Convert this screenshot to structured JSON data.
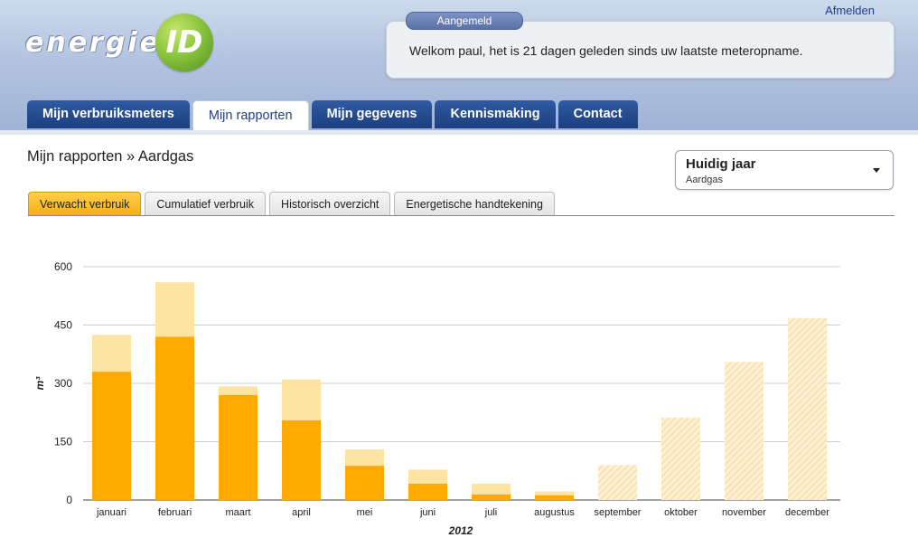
{
  "header": {
    "logo_text": "energie",
    "logo_ball_text": "ID",
    "logout_label": "Afmelden",
    "welcome_badge": "Aangemeld",
    "welcome_text": "Welkom paul, het is 21 dagen geleden sinds uw laatste meteropname."
  },
  "nav": {
    "tabs": [
      {
        "label": "Mijn verbruiksmeters"
      },
      {
        "label": "Mijn rapporten"
      },
      {
        "label": "Mijn gegevens"
      },
      {
        "label": "Kennismaking"
      },
      {
        "label": "Contact"
      }
    ],
    "active": "Mijn rapporten"
  },
  "page": {
    "title": "Mijn rapporten » Aardgas",
    "selector_title": "Huidig jaar",
    "selector_sub": "Aardgas"
  },
  "subtabs": [
    {
      "label": "Verwacht verbruik"
    },
    {
      "label": "Cumulatief verbruik"
    },
    {
      "label": "Historisch overzicht"
    },
    {
      "label": "Energetische handtekening"
    }
  ],
  "colors": {
    "actual": "#ffaa00",
    "expected": "#fde4a3",
    "forecast_hatch": "#f6d9a0",
    "nav_tab": "#2a4f93"
  },
  "chart_data": {
    "type": "bar",
    "xlabel": "2012",
    "ylabel": "m³",
    "ylim": [
      0,
      600
    ],
    "yticks": [
      0,
      150,
      300,
      450,
      600
    ],
    "grid": true,
    "categories": [
      "januari",
      "februari",
      "maart",
      "april",
      "mei",
      "juni",
      "juli",
      "augustus",
      "september",
      "oktober",
      "november",
      "december"
    ],
    "actual": [
      330,
      420,
      270,
      205,
      88,
      42,
      14,
      12,
      null,
      null,
      null,
      null
    ],
    "total": [
      425,
      560,
      292,
      310,
      130,
      78,
      42,
      22,
      90,
      212,
      355,
      468
    ]
  }
}
